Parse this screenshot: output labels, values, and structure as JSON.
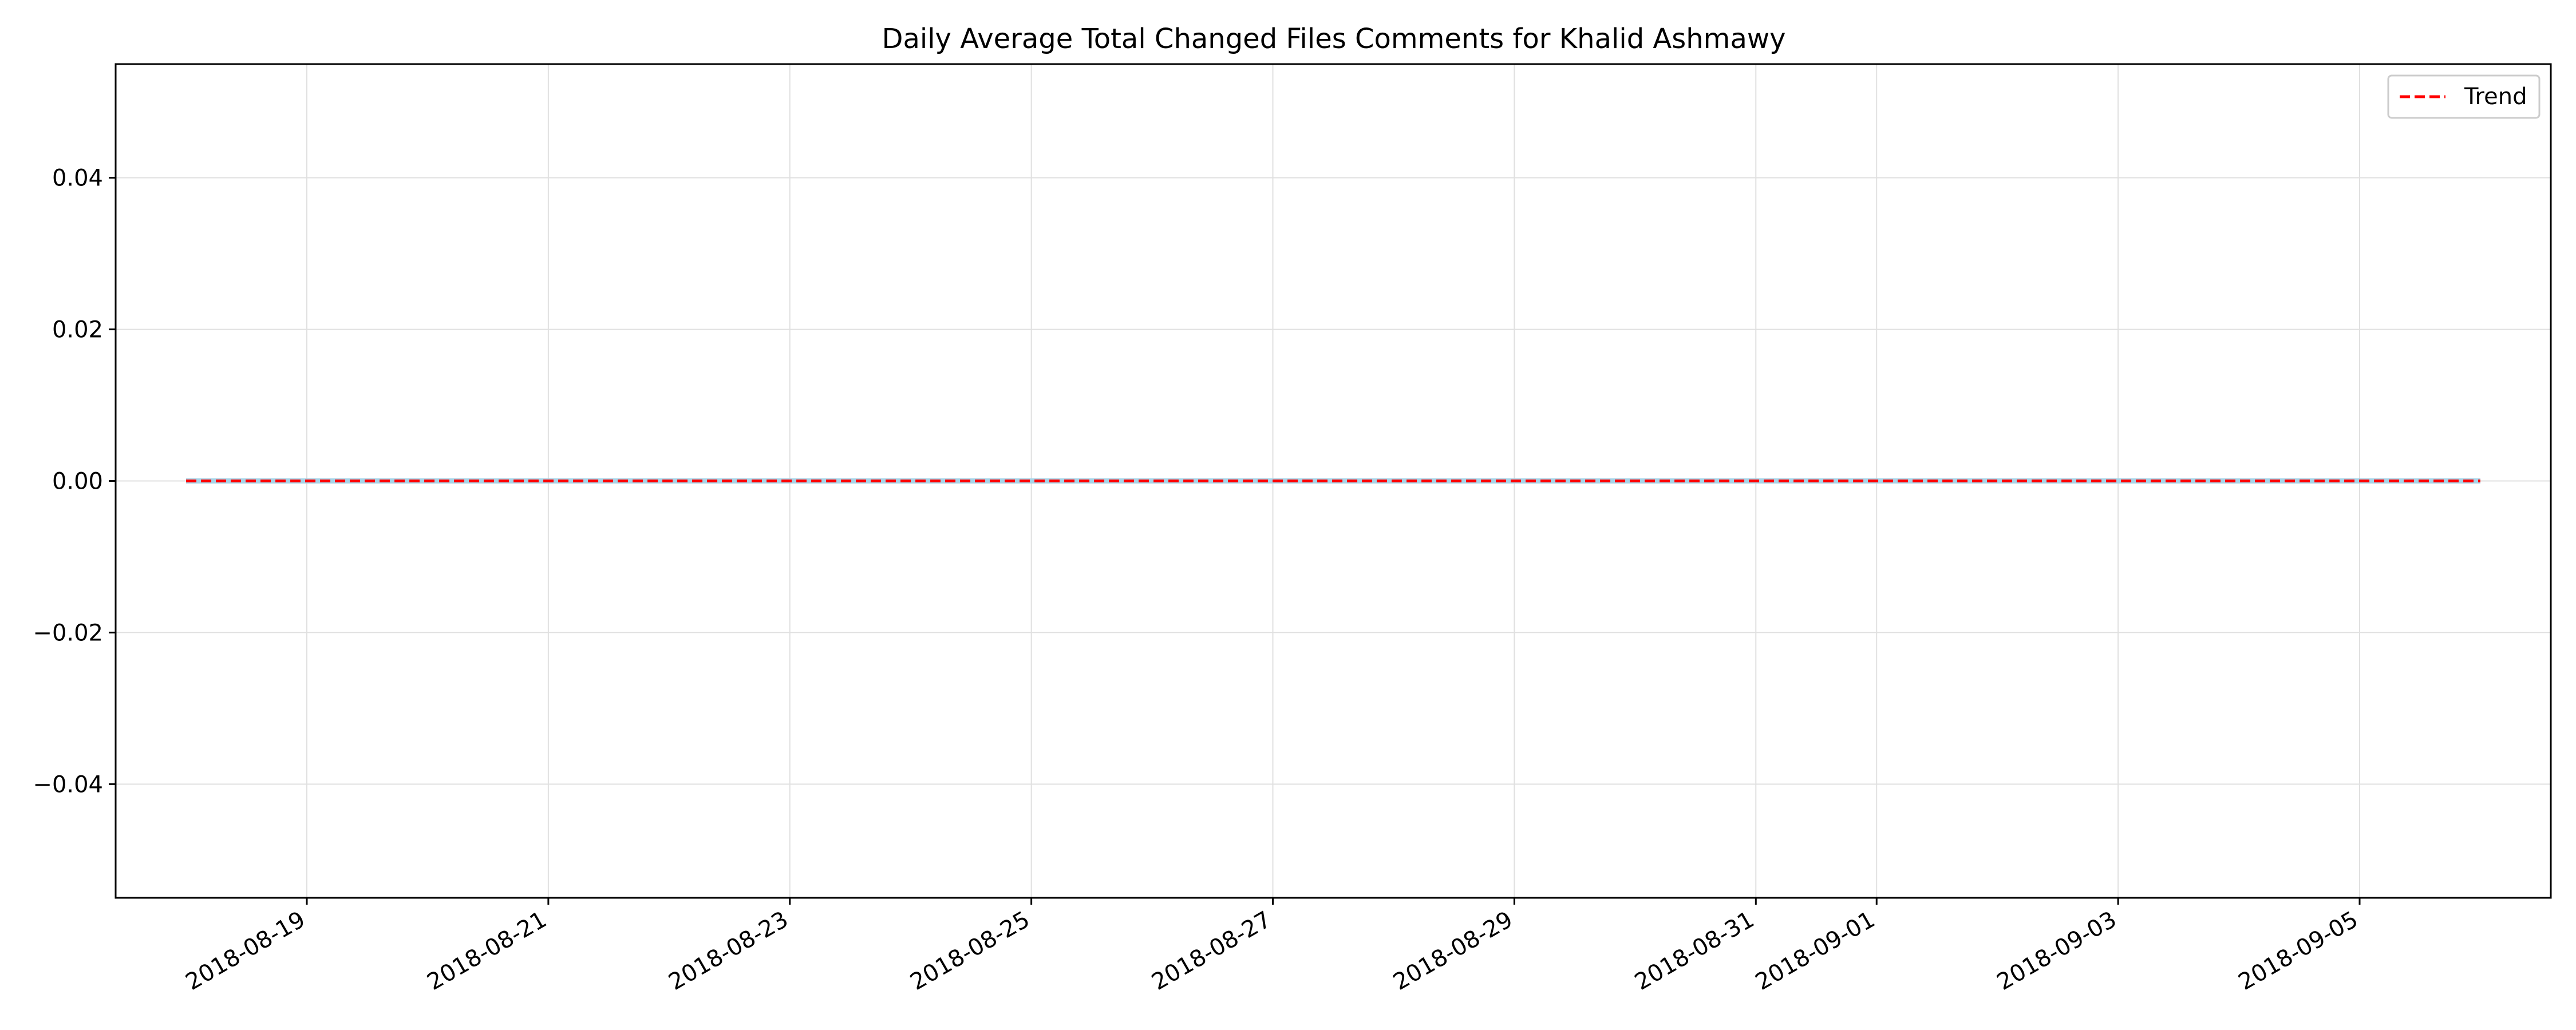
{
  "chart_data": {
    "type": "line",
    "title": "Daily Average Total Changed Files Comments for Khalid Ashmawy",
    "xlabel": "",
    "ylabel": "",
    "x_type": "date",
    "xlim": [
      "2018-08-17T10:00",
      "2018-09-06T14:00"
    ],
    "ylim": [
      -0.055,
      0.055
    ],
    "x_ticks": [
      "2018-08-19",
      "2018-08-21",
      "2018-08-23",
      "2018-08-25",
      "2018-08-27",
      "2018-08-29",
      "2018-08-31",
      "2018-09-01",
      "2018-09-03",
      "2018-09-05"
    ],
    "y_ticks": [
      -0.04,
      -0.02,
      0.0,
      0.02,
      0.04
    ],
    "y_tick_labels": [
      "−0.04",
      "−0.02",
      "0.00",
      "0.02",
      "0.04"
    ],
    "grid": true,
    "legend_position": "top-right",
    "series": [
      {
        "x": [
          "2018-08-18",
          "2018-09-06"
        ],
        "y": [
          0,
          0
        ],
        "color": "#a6d4e8",
        "style": "solid"
      },
      {
        "name": "Trend",
        "x": [
          "2018-08-18",
          "2018-09-06"
        ],
        "y": [
          0,
          0
        ],
        "color": "#ff0000",
        "style": "dashed"
      }
    ]
  }
}
